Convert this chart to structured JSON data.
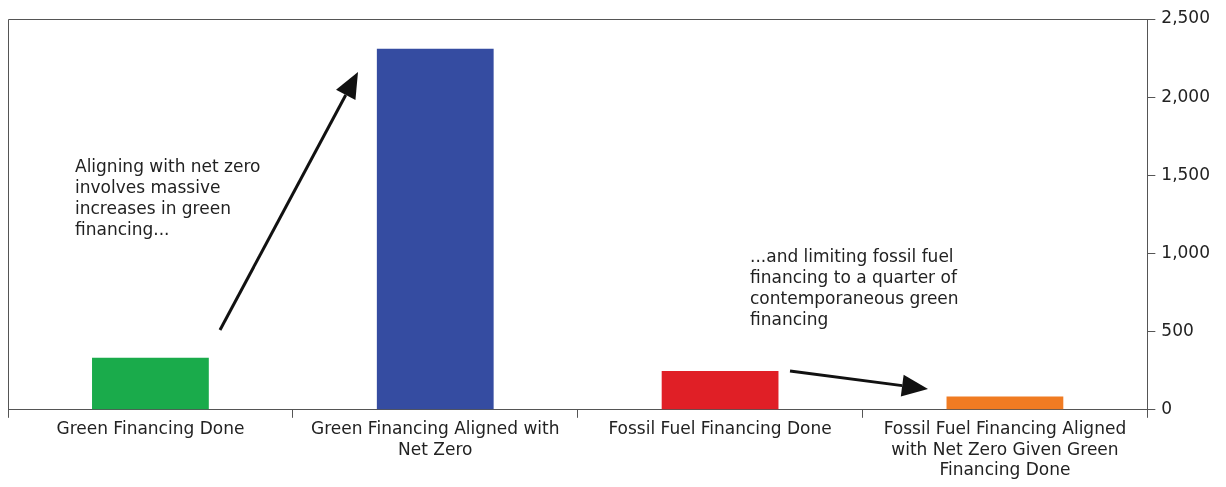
{
  "chart_data": {
    "type": "bar",
    "categories": [
      "Green Financing Done",
      "Green Financing Aligned with Net Zero",
      "Fossil Fuel Financing Done",
      "Fossil Fuel Financing Aligned with Net Zero Given Green Financing Done"
    ],
    "values": [
      333,
      2310,
      248,
      85
    ],
    "colors": [
      "#1aab4b",
      "#354ca1",
      "#e01f26",
      "#f07b22"
    ],
    "ylim": [
      0,
      2500
    ],
    "yticks": [
      0,
      {
        "value": 500,
        "label": "500"
      },
      {
        "value": 1000,
        "label": "1,000"
      },
      {
        "value": 1500,
        "label": "1,500"
      },
      {
        "value": 2000,
        "label": "2,000"
      },
      {
        "value": 2500,
        "label": "2,500"
      }
    ],
    "grid": false,
    "legend": false,
    "annotations": [
      "Aligning with net zero involves massive increases in green financing...",
      "...and limiting fossil fuel financing to a quarter of contemporaneous green financing"
    ]
  }
}
